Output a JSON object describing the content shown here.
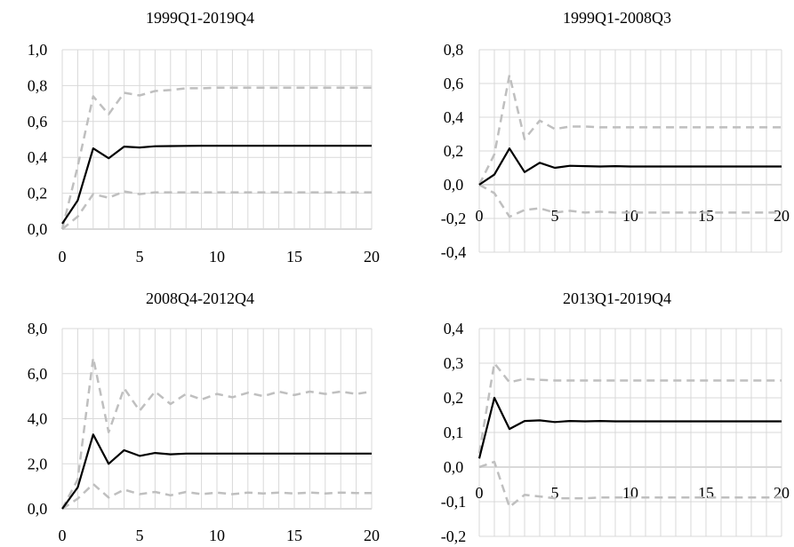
{
  "chart_data": [
    {
      "type": "line",
      "title": "1999Q1-2019Q4",
      "x": [
        0,
        1,
        2,
        3,
        4,
        5,
        6,
        7,
        8,
        9,
        10,
        11,
        12,
        13,
        14,
        15,
        16,
        17,
        18,
        19,
        20
      ],
      "xticks": [
        "0",
        "5",
        "10",
        "15",
        "20"
      ],
      "yticks": [
        "0,0",
        "0,2",
        "0,4",
        "0,6",
        "0,8",
        "1,0"
      ],
      "ylim": [
        0,
        1.0
      ],
      "grid": true,
      "series": [
        {
          "values": [
            0.03,
            0.16,
            0.45,
            0.395,
            0.46,
            0.455,
            0.462,
            0.463,
            0.464,
            0.465,
            0.465,
            0.465,
            0.465,
            0.465,
            0.465,
            0.465,
            0.465,
            0.465,
            0.465,
            0.465,
            0.465
          ],
          "color": "#000000",
          "dash": false
        },
        {
          "values": [
            0.0,
            0.35,
            0.74,
            0.64,
            0.76,
            0.745,
            0.77,
            0.775,
            0.785,
            0.785,
            0.788,
            0.788,
            0.788,
            0.788,
            0.788,
            0.788,
            0.788,
            0.788,
            0.788,
            0.788,
            0.788
          ],
          "color": "#bfbfbf",
          "dash": true
        },
        {
          "values": [
            0.0,
            0.07,
            0.195,
            0.175,
            0.21,
            0.195,
            0.205,
            0.205,
            0.205,
            0.205,
            0.205,
            0.205,
            0.205,
            0.205,
            0.205,
            0.205,
            0.205,
            0.205,
            0.205,
            0.205,
            0.205
          ],
          "color": "#bfbfbf",
          "dash": true
        }
      ]
    },
    {
      "type": "line",
      "title": "1999Q1-2008Q3",
      "x": [
        0,
        1,
        2,
        3,
        4,
        5,
        6,
        7,
        8,
        9,
        10,
        11,
        12,
        13,
        14,
        15,
        16,
        17,
        18,
        19,
        20
      ],
      "xticks": [
        "0",
        "5",
        "10",
        "15",
        "20"
      ],
      "yticks": [
        "-0,4",
        "-0,2",
        "0,0",
        "0,2",
        "0,4",
        "0,6",
        "0,8"
      ],
      "ylim": [
        -0.4,
        0.8
      ],
      "grid": true,
      "series": [
        {
          "values": [
            0.0,
            0.06,
            0.215,
            0.075,
            0.13,
            0.1,
            0.112,
            0.11,
            0.108,
            0.11,
            0.108,
            0.108,
            0.108,
            0.108,
            0.108,
            0.108,
            0.108,
            0.108,
            0.108,
            0.108,
            0.108
          ],
          "color": "#000000",
          "dash": false
        },
        {
          "values": [
            0.0,
            0.18,
            0.65,
            0.27,
            0.38,
            0.33,
            0.345,
            0.345,
            0.34,
            0.34,
            0.34,
            0.34,
            0.34,
            0.34,
            0.34,
            0.34,
            0.34,
            0.34,
            0.34,
            0.34,
            0.34
          ],
          "color": "#bfbfbf",
          "dash": true
        },
        {
          "values": [
            0.0,
            -0.05,
            -0.19,
            -0.15,
            -0.14,
            -0.165,
            -0.155,
            -0.165,
            -0.16,
            -0.165,
            -0.165,
            -0.165,
            -0.165,
            -0.165,
            -0.165,
            -0.165,
            -0.165,
            -0.165,
            -0.165,
            -0.165,
            -0.165
          ],
          "color": "#bfbfbf",
          "dash": true
        }
      ]
    },
    {
      "type": "line",
      "title": "2008Q4-2012Q4",
      "x": [
        0,
        1,
        2,
        3,
        4,
        5,
        6,
        7,
        8,
        9,
        10,
        11,
        12,
        13,
        14,
        15,
        16,
        17,
        18,
        19,
        20
      ],
      "xticks": [
        "0",
        "5",
        "10",
        "15",
        "20"
      ],
      "yticks": [
        "0,0",
        "2,0",
        "4,0",
        "6,0",
        "8,0"
      ],
      "ylim": [
        0,
        8.0
      ],
      "grid": true,
      "series": [
        {
          "values": [
            0.0,
            0.95,
            3.3,
            2.0,
            2.6,
            2.35,
            2.48,
            2.42,
            2.45,
            2.45,
            2.45,
            2.45,
            2.45,
            2.45,
            2.45,
            2.45,
            2.45,
            2.45,
            2.45,
            2.45,
            2.45
          ],
          "color": "#000000",
          "dash": false
        },
        {
          "values": [
            0.0,
            1.3,
            6.7,
            3.4,
            5.35,
            4.35,
            5.2,
            4.65,
            5.1,
            4.85,
            5.1,
            4.95,
            5.15,
            5.0,
            5.2,
            5.05,
            5.2,
            5.1,
            5.2,
            5.1,
            5.2
          ],
          "color": "#bfbfbf",
          "dash": true
        },
        {
          "values": [
            0.0,
            0.45,
            1.1,
            0.5,
            0.85,
            0.65,
            0.75,
            0.6,
            0.75,
            0.65,
            0.72,
            0.65,
            0.72,
            0.68,
            0.72,
            0.68,
            0.72,
            0.68,
            0.72,
            0.7,
            0.7
          ],
          "color": "#bfbfbf",
          "dash": true
        }
      ]
    },
    {
      "type": "line",
      "title": "2013Q1-2019Q4",
      "x": [
        0,
        1,
        2,
        3,
        4,
        5,
        6,
        7,
        8,
        9,
        10,
        11,
        12,
        13,
        14,
        15,
        16,
        17,
        18,
        19,
        20
      ],
      "xticks": [
        "0",
        "5",
        "10",
        "15",
        "20"
      ],
      "yticks": [
        "-0,2",
        "-0,1",
        "0,0",
        "0,1",
        "0,2",
        "0,3",
        "0,4"
      ],
      "ylim": [
        -0.2,
        0.4
      ],
      "grid": true,
      "series": [
        {
          "values": [
            0.025,
            0.2,
            0.11,
            0.133,
            0.135,
            0.13,
            0.133,
            0.132,
            0.133,
            0.132,
            0.132,
            0.132,
            0.132,
            0.132,
            0.132,
            0.132,
            0.132,
            0.132,
            0.132,
            0.132,
            0.132
          ],
          "color": "#000000",
          "dash": false
        },
        {
          "values": [
            0.04,
            0.3,
            0.245,
            0.255,
            0.252,
            0.25,
            0.25,
            0.25,
            0.25,
            0.25,
            0.25,
            0.25,
            0.25,
            0.25,
            0.25,
            0.25,
            0.25,
            0.25,
            0.25,
            0.25,
            0.25
          ],
          "color": "#bfbfbf",
          "dash": true
        },
        {
          "values": [
            0.0,
            0.015,
            -0.115,
            -0.08,
            -0.085,
            -0.09,
            -0.09,
            -0.09,
            -0.088,
            -0.088,
            -0.088,
            -0.088,
            -0.088,
            -0.088,
            -0.088,
            -0.088,
            -0.088,
            -0.088,
            -0.088,
            -0.088,
            -0.088
          ],
          "color": "#bfbfbf",
          "dash": true
        }
      ]
    }
  ]
}
